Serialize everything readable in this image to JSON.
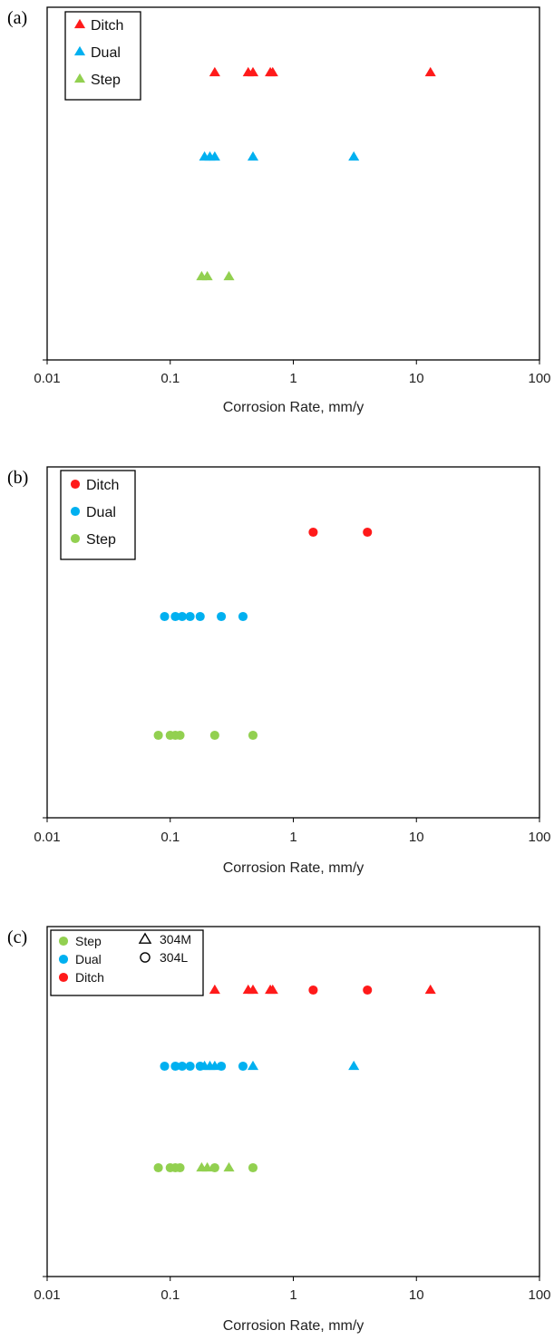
{
  "colors": {
    "Ditch": "#ff1a1a",
    "Dual": "#00b0f0",
    "Step": "#92d050"
  },
  "chart_data": [
    {
      "panel_label": "(a)",
      "type": "scatter",
      "xscale": "log",
      "xlim": [
        0.01,
        100
      ],
      "xticks": [
        "0.01",
        "0.1",
        "1",
        "10",
        "100"
      ],
      "xlabel": "Corrosion Rate, mm/y",
      "marker": "triangle",
      "legend": [
        "Ditch",
        "Dual",
        "Step"
      ],
      "series": [
        {
          "name": "Ditch",
          "row": 1,
          "x": [
            0.23,
            0.43,
            0.47,
            0.65,
            0.68,
            13.0
          ]
        },
        {
          "name": "Dual",
          "row": 2,
          "x": [
            0.19,
            0.21,
            0.23,
            0.47,
            3.1
          ]
        },
        {
          "name": "Step",
          "row": 3,
          "x": [
            0.18,
            0.2,
            0.3
          ]
        }
      ]
    },
    {
      "panel_label": "(b)",
      "type": "scatter",
      "xscale": "log",
      "xlim": [
        0.01,
        100
      ],
      "xticks": [
        "0.01",
        "0.1",
        "1",
        "10",
        "100"
      ],
      "xlabel": "Corrosion Rate, mm/y",
      "marker": "circle",
      "legend": [
        "Ditch",
        "Dual",
        "Step"
      ],
      "series": [
        {
          "name": "Ditch",
          "row": 1,
          "x": [
            1.45,
            4.0
          ]
        },
        {
          "name": "Dual",
          "row": 2,
          "x": [
            0.09,
            0.11,
            0.125,
            0.145,
            0.175,
            0.26,
            0.39
          ]
        },
        {
          "name": "Step",
          "row": 3,
          "x": [
            0.08,
            0.1,
            0.11,
            0.12,
            0.23,
            0.47
          ]
        }
      ]
    },
    {
      "panel_label": "(c)",
      "type": "scatter",
      "xscale": "log",
      "xlim": [
        0.01,
        100
      ],
      "xticks": [
        "0.01",
        "0.1",
        "1",
        "10",
        "100"
      ],
      "xlabel": "Corrosion Rate, mm/y",
      "legend": [
        "Step",
        "Dual",
        "Ditch"
      ],
      "marker_legend": [
        {
          "label": "304M",
          "marker": "triangle"
        },
        {
          "label": "304L",
          "marker": "circle"
        }
      ],
      "series": [
        {
          "name": "Ditch",
          "marker": "triangle",
          "row": 1,
          "x": [
            0.23,
            0.43,
            0.47,
            0.65,
            0.68,
            13.0
          ]
        },
        {
          "name": "Ditch",
          "marker": "circle",
          "row": 1,
          "x": [
            1.45,
            4.0
          ]
        },
        {
          "name": "Dual",
          "marker": "circle",
          "row": 2,
          "x": [
            0.09,
            0.11,
            0.125,
            0.145,
            0.175,
            0.26,
            0.39
          ]
        },
        {
          "name": "Dual",
          "marker": "triangle",
          "row": 2,
          "x": [
            0.19,
            0.21,
            0.23,
            0.47,
            3.1
          ]
        },
        {
          "name": "Step",
          "marker": "circle",
          "row": 3,
          "x": [
            0.08,
            0.1,
            0.11,
            0.12,
            0.23,
            0.47
          ]
        },
        {
          "name": "Step",
          "marker": "triangle",
          "row": 3,
          "x": [
            0.18,
            0.2,
            0.3
          ]
        }
      ]
    }
  ]
}
